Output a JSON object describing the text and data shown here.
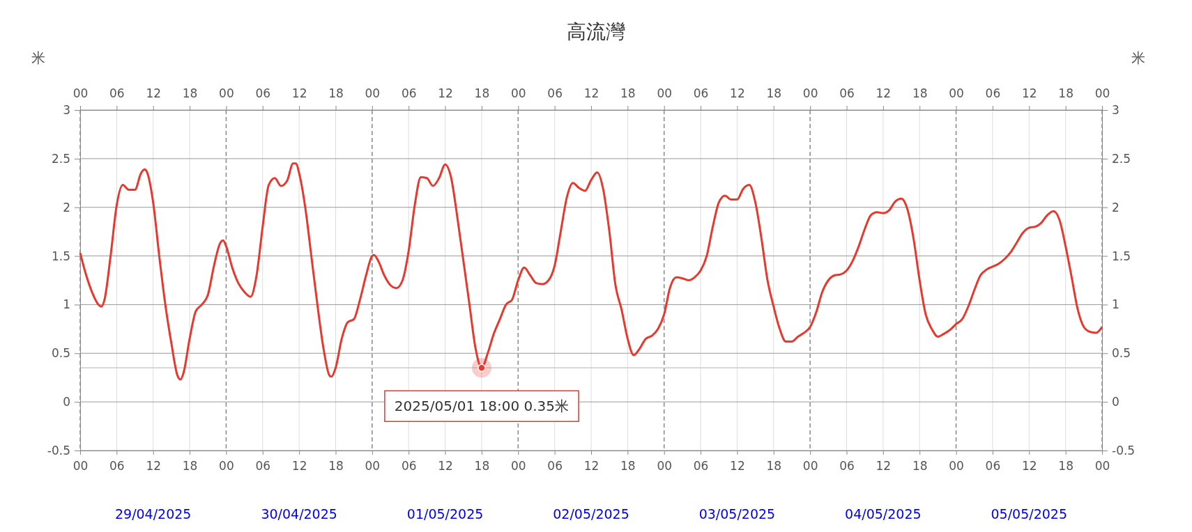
{
  "chart_data": {
    "type": "line",
    "title": "高流灣",
    "ylabel": "米",
    "y2label": "米",
    "x": [
      "2025-04-29T00:00",
      "2025-04-29T01:00",
      "2025-04-29T02:00",
      "2025-04-29T03:00",
      "2025-04-29T03:30",
      "2025-04-29T04:00",
      "2025-04-29T05:00",
      "2025-04-29T06:00",
      "2025-04-29T07:00",
      "2025-04-29T08:00",
      "2025-04-29T09:00",
      "2025-04-29T10:00",
      "2025-04-29T10:36",
      "2025-04-29T11:00",
      "2025-04-29T12:00",
      "2025-04-29T13:00",
      "2025-04-29T14:00",
      "2025-04-29T15:00",
      "2025-04-29T16:00",
      "2025-04-29T16:30",
      "2025-04-29T17:00",
      "2025-04-29T18:00",
      "2025-04-29T19:00",
      "2025-04-29T20:00",
      "2025-04-29T21:00",
      "2025-04-29T22:00",
      "2025-04-29T23:00",
      "2025-04-29T23:30",
      "2025-04-30T00:00",
      "2025-04-30T01:00",
      "2025-04-30T02:00",
      "2025-04-30T03:00",
      "2025-04-30T04:00",
      "2025-04-30T05:00",
      "2025-04-30T06:00",
      "2025-04-30T07:00",
      "2025-04-30T08:00",
      "2025-04-30T09:00",
      "2025-04-30T10:00",
      "2025-04-30T11:00",
      "2025-04-30T11:30",
      "2025-04-30T12:00",
      "2025-04-30T13:00",
      "2025-04-30T14:00",
      "2025-04-30T15:00",
      "2025-04-30T16:00",
      "2025-04-30T17:00",
      "2025-04-30T17:18",
      "2025-04-30T18:00",
      "2025-04-30T19:00",
      "2025-04-30T20:00",
      "2025-04-30T21:00",
      "2025-04-30T22:00",
      "2025-04-30T23:00",
      "2025-05-01T00:00",
      "2025-05-01T00:18",
      "2025-05-01T01:00",
      "2025-05-01T02:00",
      "2025-05-01T03:00",
      "2025-05-01T04:00",
      "2025-05-01T05:00",
      "2025-05-01T06:00",
      "2025-05-01T07:00",
      "2025-05-01T08:00",
      "2025-05-01T09:00",
      "2025-05-01T10:00",
      "2025-05-01T11:00",
      "2025-05-01T12:00",
      "2025-05-01T13:00",
      "2025-05-01T14:00",
      "2025-05-01T15:00",
      "2025-05-01T16:00",
      "2025-05-01T17:00",
      "2025-05-01T18:00",
      "2025-05-01T19:00",
      "2025-05-01T20:00",
      "2025-05-01T21:00",
      "2025-05-01T22:00",
      "2025-05-01T23:00",
      "2025-05-02T00:00",
      "2025-05-02T01:00",
      "2025-05-02T02:00",
      "2025-05-02T03:00",
      "2025-05-02T04:00",
      "2025-05-02T05:00",
      "2025-05-02T06:00",
      "2025-05-02T07:00",
      "2025-05-02T08:00",
      "2025-05-02T09:00",
      "2025-05-02T10:00",
      "2025-05-02T11:00",
      "2025-05-02T12:00",
      "2025-05-02T13:00",
      "2025-05-02T14:00",
      "2025-05-02T15:00",
      "2025-05-02T16:00",
      "2025-05-02T17:00",
      "2025-05-02T18:00",
      "2025-05-02T19:00",
      "2025-05-02T20:00",
      "2025-05-02T21:00",
      "2025-05-02T22:00",
      "2025-05-02T23:00",
      "2025-05-03T00:00",
      "2025-05-03T01:00",
      "2025-05-03T02:00",
      "2025-05-03T03:00",
      "2025-05-03T04:00",
      "2025-05-03T05:00",
      "2025-05-03T06:00",
      "2025-05-03T07:00",
      "2025-05-03T08:00",
      "2025-05-03T09:00",
      "2025-05-03T10:00",
      "2025-05-03T11:00",
      "2025-05-03T12:00",
      "2025-05-03T13:00",
      "2025-05-03T14:00",
      "2025-05-03T15:00",
      "2025-05-03T16:00",
      "2025-05-03T17:00",
      "2025-05-03T18:00",
      "2025-05-03T19:00",
      "2025-05-03T20:00",
      "2025-05-03T21:00",
      "2025-05-03T22:00",
      "2025-05-03T23:00",
      "2025-05-04T00:00",
      "2025-05-04T01:00",
      "2025-05-04T02:00",
      "2025-05-04T03:00",
      "2025-05-04T04:00",
      "2025-05-04T05:00",
      "2025-05-04T06:00",
      "2025-05-04T07:00",
      "2025-05-04T08:00",
      "2025-05-04T09:00",
      "2025-05-04T10:00",
      "2025-05-04T11:00",
      "2025-05-04T12:00",
      "2025-05-04T13:00",
      "2025-05-04T14:00",
      "2025-05-04T15:00",
      "2025-05-04T16:00",
      "2025-05-04T17:00",
      "2025-05-04T18:00",
      "2025-05-04T19:00",
      "2025-05-04T20:00",
      "2025-05-04T21:00",
      "2025-05-04T22:00",
      "2025-05-04T23:00",
      "2025-05-05T00:00",
      "2025-05-05T01:00",
      "2025-05-05T02:00",
      "2025-05-05T03:00",
      "2025-05-05T04:00",
      "2025-05-05T05:00",
      "2025-05-05T06:00",
      "2025-05-05T07:00",
      "2025-05-05T08:00",
      "2025-05-05T09:00",
      "2025-05-05T10:00",
      "2025-05-05T11:00",
      "2025-05-05T12:00",
      "2025-05-05T13:00",
      "2025-05-05T14:00",
      "2025-05-05T15:00",
      "2025-05-05T16:00",
      "2025-05-05T17:00",
      "2025-05-05T18:00",
      "2025-05-05T19:00",
      "2025-05-05T20:00",
      "2025-05-05T21:00",
      "2025-05-05T22:00",
      "2025-05-05T23:00",
      "2025-05-06T00:00"
    ],
    "series": [
      {
        "color": "#e8382e",
        "values": [
          1.53,
          1.3,
          1.12,
          1.0,
          0.98,
          1.05,
          1.5,
          2.02,
          2.23,
          2.18,
          2.18,
          2.35,
          2.39,
          2.36,
          2.05,
          1.5,
          1.0,
          0.6,
          0.27,
          0.23,
          0.3,
          0.65,
          0.93,
          1.0,
          1.1,
          1.4,
          1.63,
          1.66,
          1.6,
          1.38,
          1.22,
          1.13,
          1.08,
          1.3,
          1.8,
          2.23,
          2.3,
          2.22,
          2.27,
          2.45,
          2.45,
          2.35,
          2.0,
          1.5,
          1.0,
          0.55,
          0.27,
          0.26,
          0.35,
          0.65,
          0.82,
          0.85,
          1.05,
          1.3,
          1.5,
          1.51,
          1.45,
          1.3,
          1.2,
          1.17,
          1.25,
          1.55,
          2.02,
          2.31,
          2.3,
          2.22,
          2.3,
          2.44,
          2.3,
          1.9,
          1.45,
          1.0,
          0.55,
          0.35,
          0.5,
          0.7,
          0.85,
          1.0,
          1.05,
          1.25,
          1.38,
          1.3,
          1.22,
          1.21,
          1.25,
          1.4,
          1.75,
          2.1,
          2.25,
          2.2,
          2.17,
          2.28,
          2.36,
          2.18,
          1.75,
          1.2,
          0.95,
          0.65,
          0.48,
          0.55,
          0.65,
          0.68,
          0.75,
          0.9,
          1.18,
          1.28,
          1.27,
          1.25,
          1.28,
          1.35,
          1.5,
          1.8,
          2.05,
          2.12,
          2.08,
          2.08,
          2.19,
          2.23,
          2.05,
          1.68,
          1.25,
          0.98,
          0.75,
          0.62,
          0.62,
          0.67,
          0.71,
          0.77,
          0.92,
          1.13,
          1.25,
          1.3,
          1.31,
          1.35,
          1.45,
          1.6,
          1.78,
          1.92,
          1.95,
          1.94,
          1.97,
          2.06,
          2.09,
          1.98,
          1.68,
          1.25,
          0.9,
          0.75,
          0.67,
          0.7,
          0.74,
          0.8,
          0.85,
          0.98,
          1.15,
          1.3,
          1.36,
          1.39,
          1.42,
          1.47,
          1.54,
          1.64,
          1.74,
          1.79,
          1.8,
          1.84,
          1.92,
          1.96,
          1.87,
          1.6,
          1.28,
          0.95,
          0.77,
          0.72,
          0.71,
          0.77
        ]
      }
    ],
    "xlim": [
      "2025-04-29T00:00",
      "2025-05-06T00:00"
    ],
    "xticks": [
      {
        "value": "2025-04-29T00:00",
        "label": "00"
      },
      {
        "value": "2025-04-29T06:00",
        "label": "06"
      },
      {
        "value": "2025-04-29T12:00",
        "label": "12"
      },
      {
        "value": "2025-04-29T18:00",
        "label": "18"
      },
      {
        "value": "2025-04-30T00:00",
        "label": "00"
      },
      {
        "value": "2025-04-30T06:00",
        "label": "06"
      },
      {
        "value": "2025-04-30T12:00",
        "label": "12"
      },
      {
        "value": "2025-04-30T18:00",
        "label": "18"
      },
      {
        "value": "2025-05-01T00:00",
        "label": "00"
      },
      {
        "value": "2025-05-01T06:00",
        "label": "06"
      },
      {
        "value": "2025-05-01T12:00",
        "label": "12"
      },
      {
        "value": "2025-05-01T18:00",
        "label": "18"
      },
      {
        "value": "2025-05-02T00:00",
        "label": "00"
      },
      {
        "value": "2025-05-02T06:00",
        "label": "06"
      },
      {
        "value": "2025-05-02T12:00",
        "label": "12"
      },
      {
        "value": "2025-05-02T18:00",
        "label": "18"
      },
      {
        "value": "2025-05-03T00:00",
        "label": "00"
      },
      {
        "value": "2025-05-03T06:00",
        "label": "06"
      },
      {
        "value": "2025-05-03T12:00",
        "label": "12"
      },
      {
        "value": "2025-05-03T18:00",
        "label": "18"
      },
      {
        "value": "2025-05-04T00:00",
        "label": "00"
      },
      {
        "value": "2025-05-04T06:00",
        "label": "06"
      },
      {
        "value": "2025-05-04T12:00",
        "label": "12"
      },
      {
        "value": "2025-05-04T18:00",
        "label": "18"
      },
      {
        "value": "2025-05-05T00:00",
        "label": "00"
      },
      {
        "value": "2025-05-05T06:00",
        "label": "06"
      },
      {
        "value": "2025-05-05T12:00",
        "label": "12"
      },
      {
        "value": "2025-05-05T18:00",
        "label": "18"
      },
      {
        "value": "2025-05-06T00:00",
        "label": "00"
      }
    ],
    "x2lim": [
      "2025-04-29T00:00",
      "2025-05-06T00:00"
    ],
    "x2ticks": [
      {
        "value": "2025-04-29T00:00",
        "label": "00"
      },
      {
        "value": "2025-04-29T06:00",
        "label": "06"
      },
      {
        "value": "2025-04-29T12:00",
        "label": "12"
      },
      {
        "value": "2025-04-29T18:00",
        "label": "18"
      },
      {
        "value": "2025-04-30T00:00",
        "label": "00"
      },
      {
        "value": "2025-04-30T06:00",
        "label": "06"
      },
      {
        "value": "2025-04-30T12:00",
        "label": "12"
      },
      {
        "value": "2025-04-30T18:00",
        "label": "18"
      },
      {
        "value": "2025-05-01T00:00",
        "label": "00"
      },
      {
        "value": "2025-05-01T06:00",
        "label": "06"
      },
      {
        "value": "2025-05-01T12:00",
        "label": "12"
      },
      {
        "value": "2025-05-01T18:00",
        "label": "18"
      },
      {
        "value": "2025-05-02T00:00",
        "label": "00"
      },
      {
        "value": "2025-05-02T06:00",
        "label": "06"
      },
      {
        "value": "2025-05-02T12:00",
        "label": "12"
      },
      {
        "value": "2025-05-02T18:00",
        "label": "18"
      },
      {
        "value": "2025-05-03T00:00",
        "label": "00"
      },
      {
        "value": "2025-05-03T06:00",
        "label": "06"
      },
      {
        "value": "2025-05-03T12:00",
        "label": "12"
      },
      {
        "value": "2025-05-03T18:00",
        "label": "18"
      },
      {
        "value": "2025-05-04T00:00",
        "label": "00"
      },
      {
        "value": "2025-05-04T06:00",
        "label": "06"
      },
      {
        "value": "2025-05-04T12:00",
        "label": "12"
      },
      {
        "value": "2025-05-04T18:00",
        "label": "18"
      },
      {
        "value": "2025-05-05T00:00",
        "label": "00"
      },
      {
        "value": "2025-05-05T06:00",
        "label": "06"
      },
      {
        "value": "2025-05-05T12:00",
        "label": "12"
      },
      {
        "value": "2025-05-05T18:00",
        "label": "18"
      },
      {
        "value": "2025-05-06T00:00",
        "label": "00"
      }
    ],
    "ylim": [
      -0.5,
      3
    ],
    "yticks": [
      -0.5,
      0,
      0.5,
      1,
      1.5,
      2,
      2.5,
      3
    ],
    "y2lim": [
      -0.5,
      3
    ],
    "y2ticks": [
      -0.5,
      0,
      0.5,
      1,
      1.5,
      2,
      2.5,
      3
    ],
    "grid": true,
    "marker": "none",
    "line_style": "solid",
    "ref_lines": [
      {
        "axis": "y",
        "value": 0.35,
        "color": "#cccccc",
        "line_style": "solid"
      }
    ],
    "annotations": [
      "29/04/2025",
      "30/04/2025",
      "01/05/2025",
      "02/05/2025",
      "03/05/2025",
      "04/05/2025",
      "05/05/2025",
      {
        "text": "2025/05/01 18:00 0.35米",
        "x": "2025-05-01T18:00",
        "y": 0.35
      }
    ]
  }
}
